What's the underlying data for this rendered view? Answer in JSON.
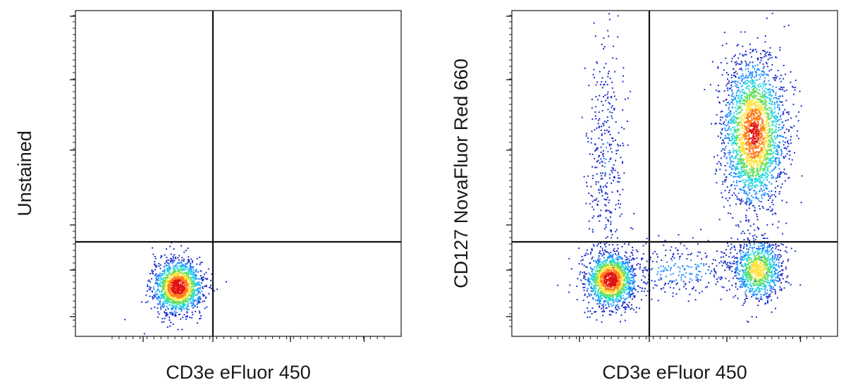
{
  "chart_data": [
    {
      "type": "scatter",
      "style": "flow cytometry density dot plot, biexponential axes, quadrant gates",
      "xlabel": "CD3e eFluor 450",
      "ylabel": "Unstained",
      "axis_scale": "biexponential",
      "grid": false,
      "tick_labels": "none",
      "gates": {
        "quadrant_x": 0,
        "quadrant_y": 0
      },
      "populations": [
        {
          "name": "",
          "quadrant": "lower-left",
          "center": [
            -0.45,
            -0.32
          ],
          "density": "high",
          "shape": "compact ellipse"
        }
      ],
      "colormap": [
        "#1c2ec9",
        "#1a8cff",
        "#22d8e0",
        "#5fe05a",
        "#ffe23a",
        "#ff7a1a",
        "#e21212"
      ]
    },
    {
      "type": "scatter",
      "style": "flow cytometry density dot plot, biexponential axes, quadrant gates",
      "xlabel": "CD3e eFluor 450",
      "ylabel": "CD127 NovaFluor Red 660",
      "axis_scale": "biexponential",
      "grid": false,
      "tick_labels": "none",
      "gates": {
        "quadrant_x": 0,
        "quadrant_y": 0
      },
      "populations": [
        {
          "name": "",
          "quadrant": "lower-left",
          "center": [
            -0.5,
            -0.27
          ],
          "density": "high",
          "shape": "compact ellipse"
        },
        {
          "name": "",
          "quadrant": "upper-right",
          "center": [
            1.35,
            0.77
          ],
          "density": "high",
          "shape": "tall broad cluster"
        },
        {
          "name": "",
          "quadrant": "lower-right",
          "center": [
            1.4,
            -0.2
          ],
          "density": "medium",
          "shape": "ellipse"
        },
        {
          "name": "",
          "quadrant": "upper-left",
          "center": [
            -0.55,
            0.6
          ],
          "density": "low",
          "shape": "sparse vertical scatter"
        },
        {
          "name": "",
          "quadrant": "lower-right",
          "center": [
            0.4,
            -0.2
          ],
          "density": "low",
          "shape": "sparse bridge"
        }
      ],
      "colormap": [
        "#1c2ec9",
        "#1a8cff",
        "#22d8e0",
        "#5fe05a",
        "#ffe23a",
        "#ff7a1a",
        "#e21212"
      ]
    }
  ]
}
